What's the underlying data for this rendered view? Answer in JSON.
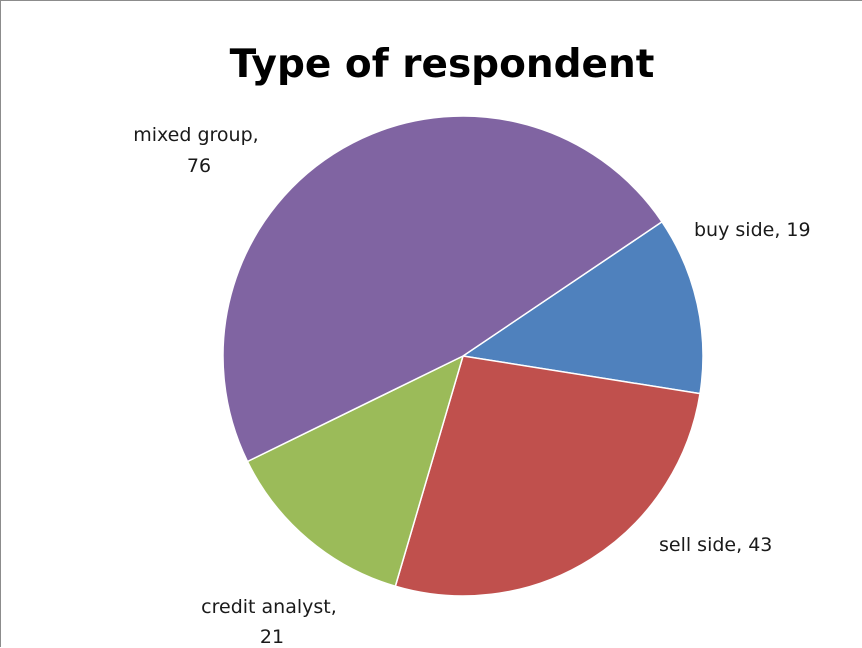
{
  "chart_data": {
    "type": "pie",
    "title": "Type of respondent",
    "slices": [
      {
        "label": "buy side",
        "value": 19,
        "color": "#4f81bd",
        "label_text": "buy side, 19"
      },
      {
        "label": "sell side",
        "value": 43,
        "color": "#c0504d",
        "label_text": "sell side, 43"
      },
      {
        "label": "credit analyst",
        "value": 21,
        "color": "#9bbb59",
        "label_lines": [
          "credit analyst,",
          "21"
        ]
      },
      {
        "label": "mixed group",
        "value": 76,
        "color": "#8064a2",
        "label_lines": [
          "mixed group,",
          "76"
        ]
      }
    ],
    "start_angle_deg": 56,
    "direction": "clockwise",
    "legend": "none",
    "data_labels": "outside"
  }
}
